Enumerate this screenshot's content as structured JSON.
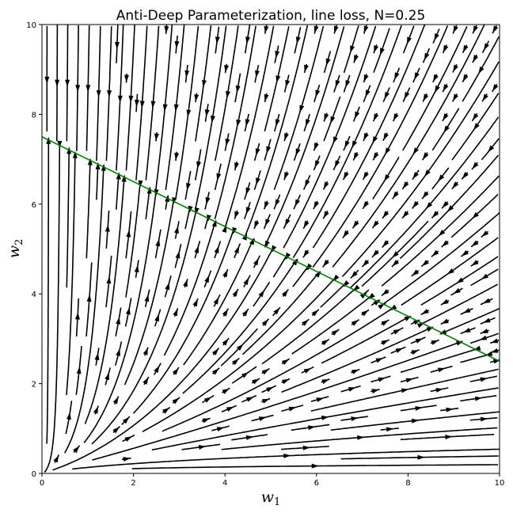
{
  "chart_data": {
    "type": "streamplot",
    "title": "Anti-Deep Parameterization, line loss, N=0.25",
    "xlabel": "w",
    "xlabel_subscript": "1",
    "ylabel": "w",
    "ylabel_subscript": "2",
    "xlim": [
      0,
      10
    ],
    "ylim": [
      0,
      10
    ],
    "xticks": [
      "0",
      "2",
      "4",
      "6",
      "8",
      "10"
    ],
    "yticks": [
      "0",
      "2",
      "4",
      "6",
      "8",
      "10"
    ],
    "grid": false,
    "stream_color": "#000000",
    "line": {
      "color": "#008000",
      "points": [
        [
          0,
          7.5
        ],
        [
          10,
          2.5
        ]
      ]
    }
  }
}
